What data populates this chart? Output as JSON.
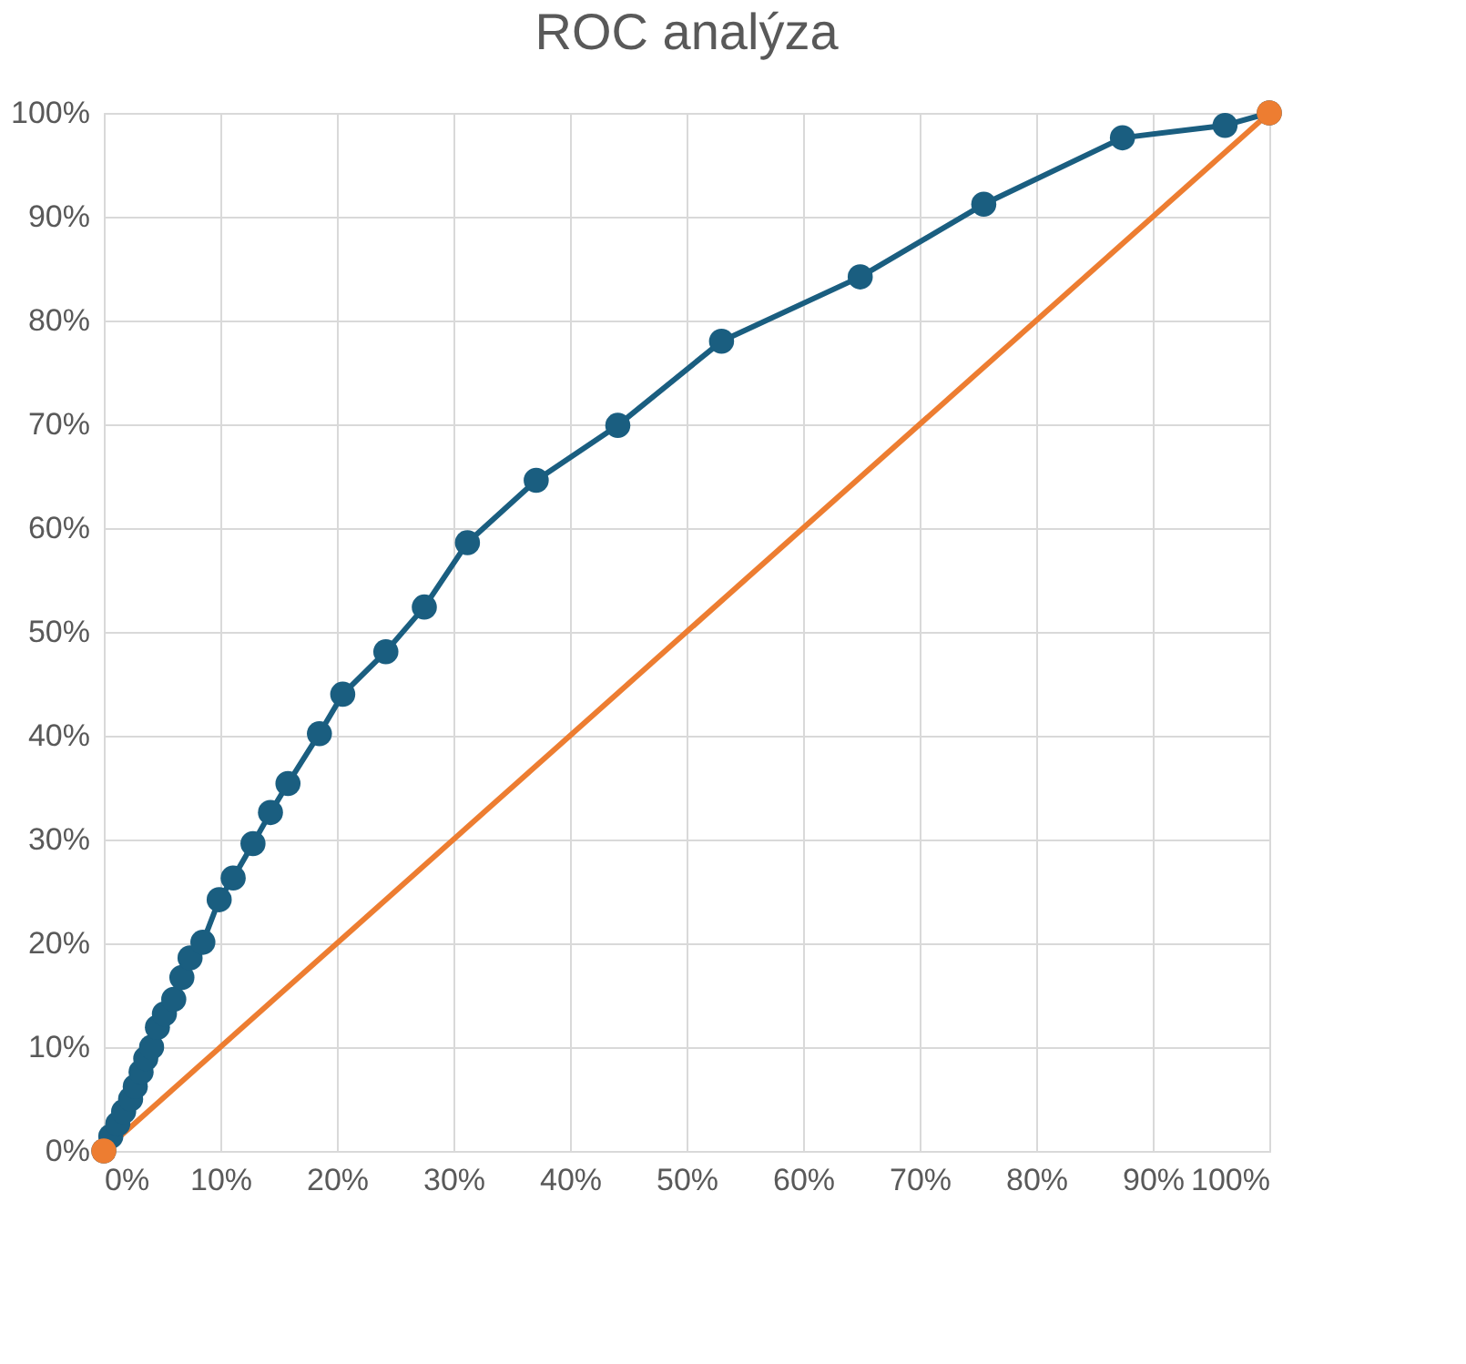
{
  "chart_data": {
    "type": "line",
    "title": "ROC analýza",
    "marker": "circle",
    "line_style": "solid",
    "grid": true,
    "legend": false,
    "xlim": [
      0,
      100
    ],
    "ylim": [
      0,
      100
    ],
    "xticks": [
      {
        "value": 0,
        "label": "0%"
      },
      {
        "value": 10,
        "label": "10%"
      },
      {
        "value": 20,
        "label": "20%"
      },
      {
        "value": 30,
        "label": "30%"
      },
      {
        "value": 40,
        "label": "40%"
      },
      {
        "value": 50,
        "label": "50%"
      },
      {
        "value": 60,
        "label": "60%"
      },
      {
        "value": 70,
        "label": "70%"
      },
      {
        "value": 80,
        "label": "80%"
      },
      {
        "value": 90,
        "label": "90%"
      },
      {
        "value": 100,
        "label": "100%"
      }
    ],
    "yticks": [
      {
        "value": 0,
        "label": "0%"
      },
      {
        "value": 10,
        "label": "10%"
      },
      {
        "value": 20,
        "label": "20%"
      },
      {
        "value": 30,
        "label": "30%"
      },
      {
        "value": 40,
        "label": "40%"
      },
      {
        "value": 50,
        "label": "50%"
      },
      {
        "value": 60,
        "label": "60%"
      },
      {
        "value": 70,
        "label": "70%"
      },
      {
        "value": 80,
        "label": "80%"
      },
      {
        "value": 90,
        "label": "90%"
      },
      {
        "value": 100,
        "label": "100%"
      }
    ],
    "series": [
      {
        "color": "#1a5e80",
        "x": [
          0,
          0.6,
          1.2,
          1.7,
          2.3,
          2.7,
          3.2,
          3.6,
          4.1,
          4.6,
          5.2,
          6.0,
          6.7,
          7.4,
          8.5,
          9.9,
          11.1,
          12.8,
          14.3,
          15.8,
          18.5,
          20.5,
          24.2,
          27.5,
          31.2,
          37.1,
          44.1,
          53.0,
          64.9,
          75.5,
          87.4,
          96.2,
          100
        ],
        "values": [
          0,
          1.4,
          2.6,
          3.8,
          5.0,
          6.2,
          7.6,
          8.9,
          10.0,
          11.9,
          13.2,
          14.6,
          16.7,
          18.6,
          20.1,
          24.2,
          26.3,
          29.6,
          32.6,
          35.4,
          40.2,
          44.0,
          48.1,
          52.4,
          58.6,
          64.6,
          69.9,
          78.0,
          84.2,
          91.2,
          97.6,
          98.8,
          100
        ]
      },
      {
        "color": "#ed7d31",
        "x": [
          0,
          100
        ],
        "values": [
          0,
          100
        ]
      }
    ]
  }
}
